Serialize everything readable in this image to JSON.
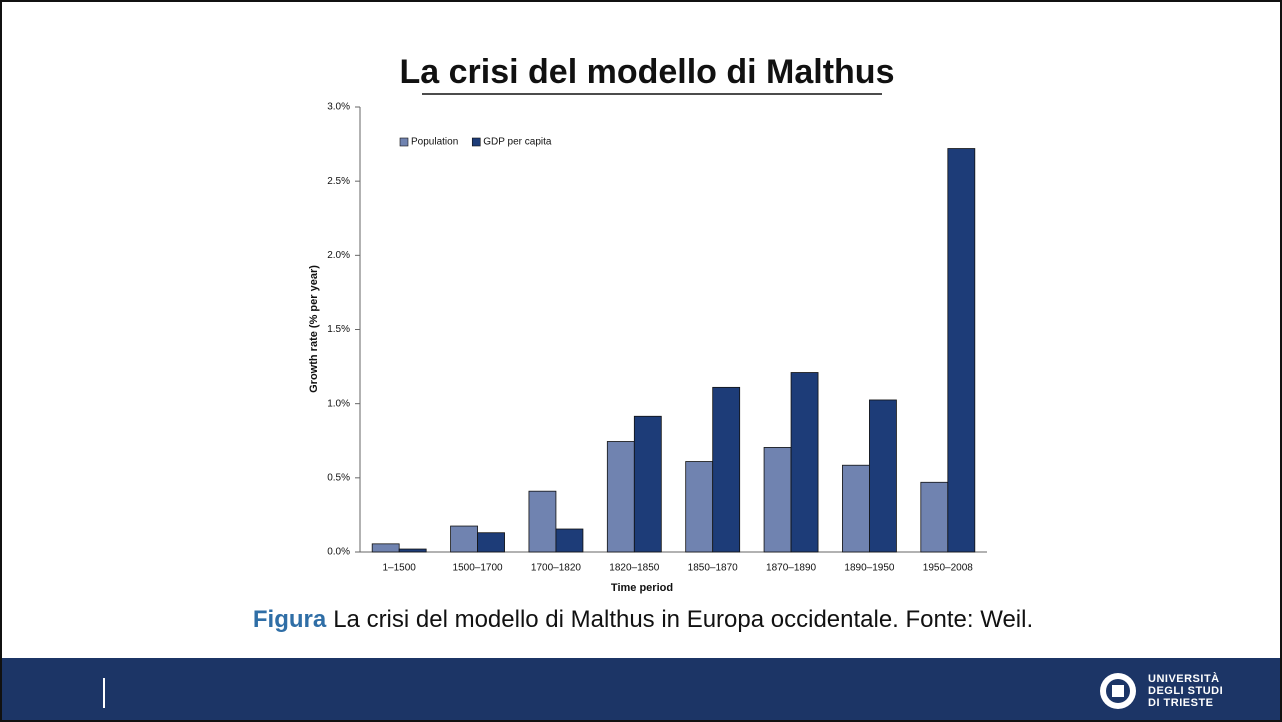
{
  "slide_title": "La crisi del modello di Malthus",
  "chart_data": {
    "type": "bar",
    "x_label": "Time period",
    "y_label": "Growth rate (% per year)",
    "categories": [
      "1–1500",
      "1500–1700",
      "1700–1820",
      "1820–1850",
      "1850–1870",
      "1870–1890",
      "1890–1950",
      "1950–2008"
    ],
    "series": [
      {
        "name": "Population",
        "color": "#7083b0",
        "values": [
          0.055,
          0.175,
          0.41,
          0.745,
          0.61,
          0.705,
          0.585,
          0.47
        ]
      },
      {
        "name": "GDP per capita",
        "color": "#1d3c78",
        "values": [
          0.02,
          0.13,
          0.155,
          0.915,
          1.11,
          1.21,
          1.025,
          2.72
        ]
      }
    ],
    "ylim": [
      0,
      3.0
    ],
    "yticks": [
      {
        "value": 0,
        "label": "0.0%"
      },
      {
        "value": 0.5,
        "label": "0.5%"
      },
      {
        "value": 1.0,
        "label": "1.0%"
      },
      {
        "value": 1.5,
        "label": "1.5%"
      },
      {
        "value": 2.0,
        "label": "2.0%"
      },
      {
        "value": 2.5,
        "label": "2.5%"
      },
      {
        "value": 3.0,
        "label": "3.0%"
      }
    ],
    "grid": false,
    "legend": "upper left"
  },
  "caption": {
    "label": "Figura",
    "text": "La crisi del modello di Malthus in Europa occidentale. Fonte: Weil."
  },
  "footer": {
    "logo_lines": [
      "UNIVERSITÀ",
      "DEGLI STUDI",
      "DI TRIESTE"
    ]
  }
}
